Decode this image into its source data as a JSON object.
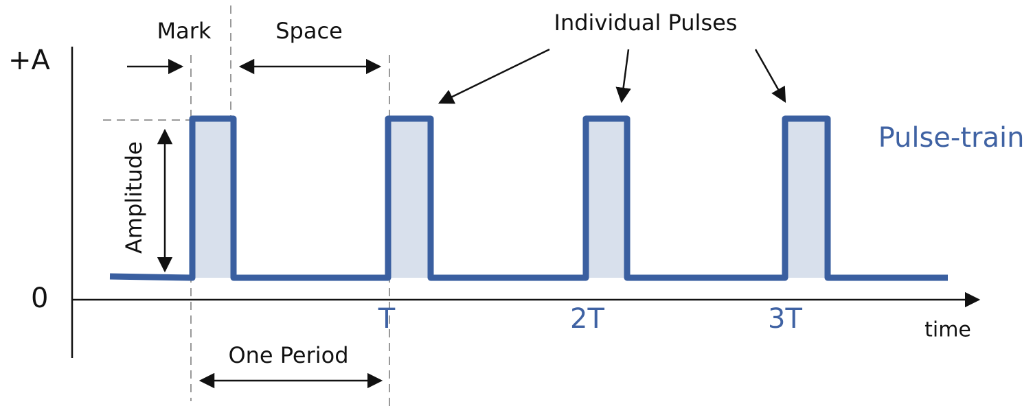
{
  "labels": {
    "plus_a": "+A",
    "zero": "0",
    "mark": "Mark",
    "space": "Space",
    "individual_pulses": "Individual Pulses",
    "amplitude": "Amplitude",
    "pulse_train": "Pulse-train",
    "t": "T",
    "t2": "2T",
    "t3": "3T",
    "time": "time",
    "one_period": "One Period"
  }
}
